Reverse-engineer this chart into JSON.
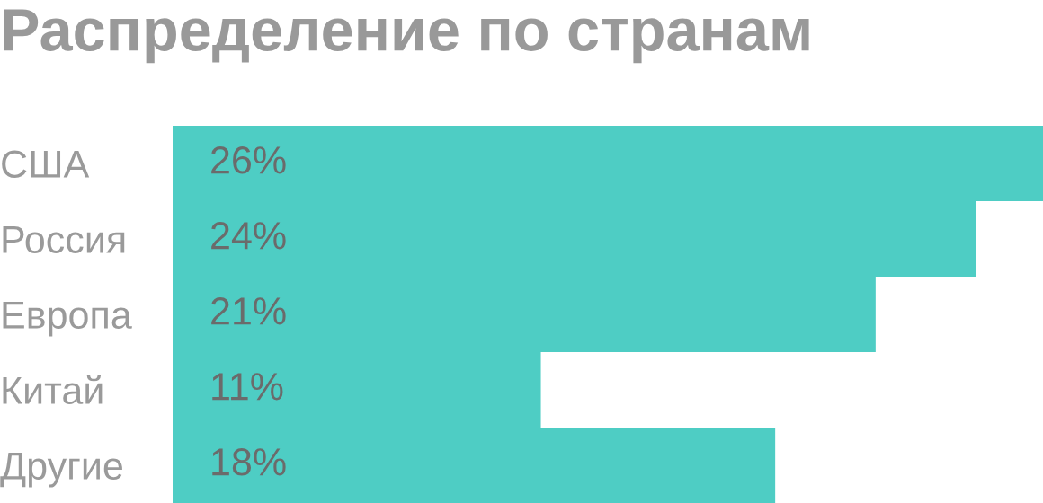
{
  "chart_data": {
    "type": "bar",
    "orientation": "horizontal",
    "title": "Распределение по странам",
    "categories": [
      "США",
      "Россия",
      "Европа",
      "Китай",
      "Другие"
    ],
    "values": [
      26,
      24,
      21,
      11,
      18
    ],
    "value_labels": [
      "26%",
      "24%",
      "21%",
      "11%",
      "18%"
    ],
    "color": "#4ecdc4",
    "tick_labels": "y",
    "grid": false
  }
}
